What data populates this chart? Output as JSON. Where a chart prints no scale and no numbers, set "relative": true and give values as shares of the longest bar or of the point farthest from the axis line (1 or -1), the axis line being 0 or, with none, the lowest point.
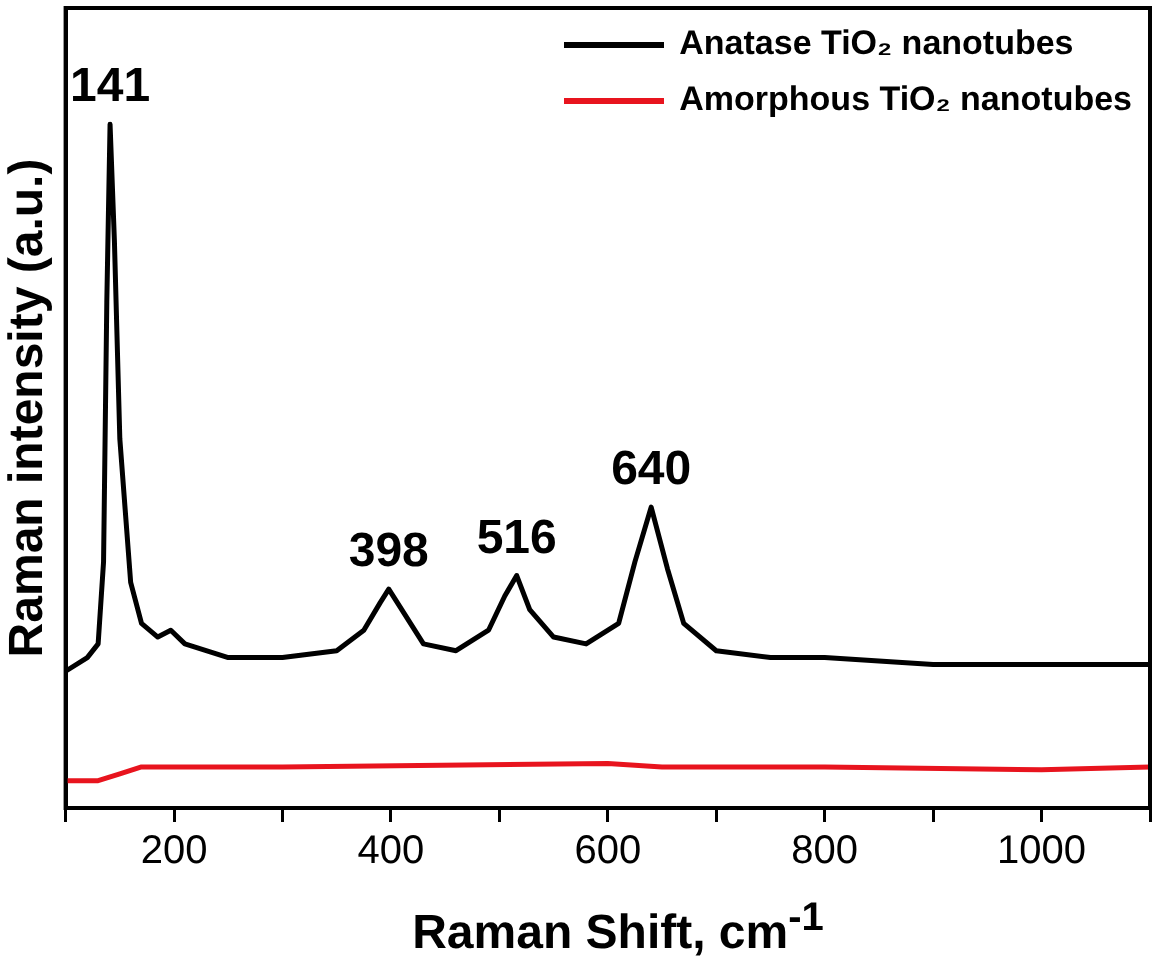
{
  "chart_data": {
    "type": "line",
    "xlabel": "Raman Shift, cm$^{-1}$",
    "ylabel": "Raman intensity (a.u.)",
    "relative": true,
    "xlim": [
      100,
      1100
    ],
    "xticks": [
      {
        "value": 100,
        "label": null
      },
      200,
      {
        "value": 300,
        "label": null
      },
      400,
      {
        "value": 500,
        "label": null
      },
      600,
      {
        "value": 700,
        "label": null
      },
      800,
      {
        "value": 900,
        "label": null
      },
      1000,
      {
        "value": 1100,
        "label": null
      }
    ],
    "legend": "top right",
    "marker": "none",
    "line_style": "solid",
    "series": [
      {
        "name": "Anatase TiO₂ nanotubes",
        "color": "#000000",
        "x": [
          100,
          120,
          130,
          135,
          138,
          141,
          145,
          150,
          160,
          170,
          185,
          197,
          210,
          250,
          300,
          350,
          375,
          390,
          398,
          410,
          430,
          460,
          490,
          505,
          516,
          528,
          550,
          580,
          610,
          625,
          640,
          655,
          670,
          700,
          750,
          800,
          900,
          1000,
          1100
        ],
        "values": [
          0.2,
          0.22,
          0.24,
          0.36,
          0.74,
          1.0,
          0.83,
          0.54,
          0.33,
          0.27,
          0.25,
          0.26,
          0.24,
          0.22,
          0.22,
          0.23,
          0.26,
          0.3,
          0.32,
          0.29,
          0.24,
          0.23,
          0.26,
          0.31,
          0.34,
          0.29,
          0.25,
          0.24,
          0.27,
          0.36,
          0.44,
          0.35,
          0.27,
          0.23,
          0.22,
          0.22,
          0.21,
          0.21,
          0.21
        ]
      },
      {
        "name": "Amorphous TiO₂ nanotubes",
        "color": "#e8141e",
        "x": [
          100,
          130,
          150,
          170,
          300,
          600,
          650,
          800,
          1000,
          1100
        ],
        "values": [
          0.04,
          0.04,
          0.05,
          0.06,
          0.06,
          0.065,
          0.06,
          0.06,
          0.056,
          0.06
        ]
      }
    ],
    "annotations": [
      {
        "text": "141",
        "x": 141,
        "y": 1.0
      },
      {
        "text": "398",
        "x": 398,
        "y": 0.32
      },
      {
        "text": "516",
        "x": 516,
        "y": 0.34
      },
      {
        "text": "640",
        "x": 640,
        "y": 0.44
      }
    ]
  }
}
